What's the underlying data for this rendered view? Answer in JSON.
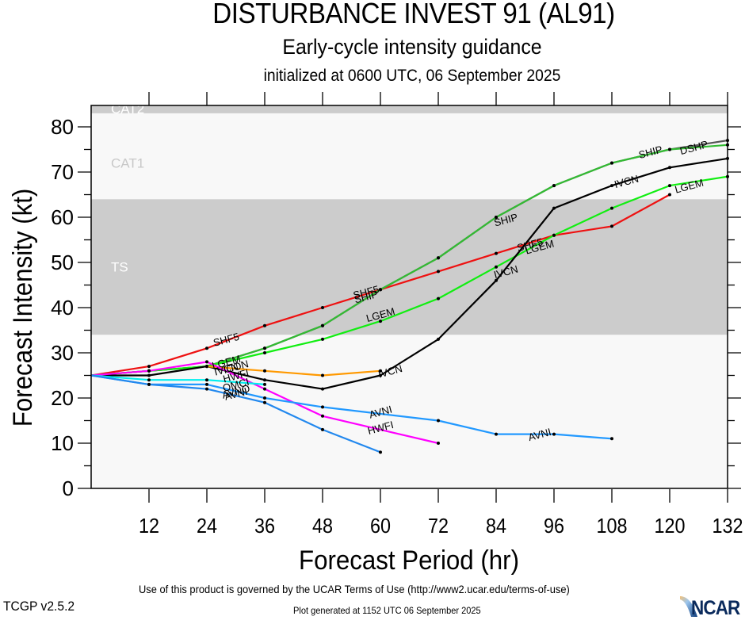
{
  "header": {
    "title": "DISTURBANCE INVEST 91 (AL91)",
    "subtitle": "Early-cycle intensity guidance",
    "initialized": "initialized at 0600 UTC, 06 September 2025"
  },
  "footer": {
    "terms": "Use of this product is governed by the UCAR Terms of Use (http://www2.ucar.edu/terms-of-use)",
    "version": "TCGP v2.5.2",
    "generated": "Plot generated at 1152 UTC   06 September 2025",
    "logo": "NCAR"
  },
  "chart_data": {
    "type": "line",
    "title": "DISTURBANCE INVEST 91 (AL91)",
    "xlabel": "Forecast Period (hr)",
    "ylabel": "Forecast Intensity (kt)",
    "xlim": [
      0,
      132
    ],
    "ylim": [
      0,
      84
    ],
    "x_ticks": [
      12,
      24,
      36,
      48,
      60,
      72,
      84,
      96,
      108,
      120,
      132
    ],
    "y_ticks": [
      0,
      10,
      20,
      30,
      40,
      50,
      60,
      70,
      80
    ],
    "bands": [
      {
        "label": "TS",
        "from": 34,
        "to": 64,
        "color": "#cccccc",
        "label_color": "#ffffff"
      },
      {
        "label": "CAT1",
        "from": 64,
        "to": 83,
        "color": "#f8f8f8",
        "label_color": "#c8c8c8"
      },
      {
        "label": "CAT2",
        "from": 83,
        "to": 96,
        "color": "#cccccc",
        "label_color": "#ffffff"
      }
    ],
    "below_band_color": "#f8f8f8",
    "series": [
      {
        "name": "SHF5",
        "color": "#ee1111",
        "x": [
          0,
          12,
          24,
          36,
          48,
          60,
          72,
          84,
          96,
          108,
          120
        ],
        "values": [
          25,
          27,
          31,
          36,
          40,
          44,
          48,
          52,
          56,
          58,
          65
        ],
        "labels": [
          {
            "x": 28,
            "y": 33
          },
          {
            "x": 57,
            "y": 43.5
          },
          {
            "x": 91,
            "y": 54
          }
        ]
      },
      {
        "name": "DSHP",
        "color": "#555555",
        "x": [
          0,
          12,
          24,
          36,
          48,
          60,
          72,
          84,
          96,
          108,
          120,
          132
        ],
        "values": [
          25,
          26,
          27,
          31,
          36,
          44,
          51,
          60,
          67,
          72,
          75,
          77
        ],
        "labels": [
          {
            "x": 125,
            "y": 75.5
          }
        ]
      },
      {
        "name": "SHIP",
        "color": "#33bb33",
        "x": [
          0,
          12,
          24,
          36,
          48,
          60,
          72,
          84,
          96,
          108,
          120,
          132
        ],
        "values": [
          25,
          26,
          27,
          31,
          36,
          44,
          51,
          60,
          67,
          72,
          75,
          76
        ],
        "labels": [
          {
            "x": 57,
            "y": 42.5
          },
          {
            "x": 86,
            "y": 59.5
          },
          {
            "x": 116,
            "y": 74.5
          }
        ]
      },
      {
        "name": "LGEM",
        "color": "#11ee11",
        "x": [
          0,
          12,
          24,
          36,
          48,
          60,
          72,
          84,
          96,
          108,
          120,
          132
        ],
        "values": [
          25,
          26,
          27,
          30,
          33,
          37,
          42,
          49,
          56,
          62,
          67,
          69
        ],
        "labels": [
          {
            "x": 28,
            "y": 28
          },
          {
            "x": 60,
            "y": 38.5
          },
          {
            "x": 93,
            "y": 53.5
          },
          {
            "x": 124,
            "y": 67
          }
        ]
      },
      {
        "name": "IVCN",
        "color": "#000000",
        "x": [
          0,
          12,
          24,
          36,
          48,
          60,
          72,
          84,
          96,
          108,
          120,
          132
        ],
        "values": [
          25,
          25,
          27,
          24,
          22,
          25,
          33,
          46,
          62,
          67,
          71,
          73
        ],
        "labels": [
          {
            "x": 28,
            "y": 26.5
          },
          {
            "x": 62,
            "y": 26
          },
          {
            "x": 86,
            "y": 48
          },
          {
            "x": 111,
            "y": 68
          }
        ]
      },
      {
        "name": "ICON",
        "color": "#ff9900",
        "x": [
          24,
          36,
          48,
          60
        ],
        "values": [
          27,
          26,
          25,
          26
        ],
        "labels": [
          {
            "x": 30,
            "y": 27
          }
        ]
      },
      {
        "name": "HWFI",
        "color": "#ff00ff",
        "x": [
          0,
          12,
          24,
          36,
          48,
          72
        ],
        "values": [
          25,
          26,
          28,
          22,
          16,
          10
        ],
        "labels": [
          {
            "x": 30,
            "y": 25
          },
          {
            "x": 60,
            "y": 13.5
          }
        ]
      },
      {
        "name": "OMCI",
        "color": "#00eeee",
        "x": [
          0,
          12,
          24,
          36
        ],
        "values": [
          25,
          24,
          24,
          23
        ],
        "labels": [
          {
            "x": 30,
            "y": 23
          }
        ]
      },
      {
        "name": "AVNI",
        "color": "#2299ff",
        "x": [
          0,
          12,
          24,
          36,
          48,
          72,
          84,
          96,
          108
        ],
        "values": [
          25,
          23,
          23,
          20,
          18,
          15,
          12,
          12,
          11
        ],
        "labels": [
          {
            "x": 30,
            "y": 21
          },
          {
            "x": 60,
            "y": 17
          },
          {
            "x": 93,
            "y": 12
          }
        ]
      },
      {
        "name": "AVNO",
        "color": "#2288ee",
        "x": [
          0,
          12,
          24,
          36,
          48,
          60
        ],
        "values": [
          25,
          23,
          22,
          19,
          13,
          8
        ],
        "labels": [
          {
            "x": 30,
            "y": 21.5
          }
        ]
      }
    ]
  }
}
